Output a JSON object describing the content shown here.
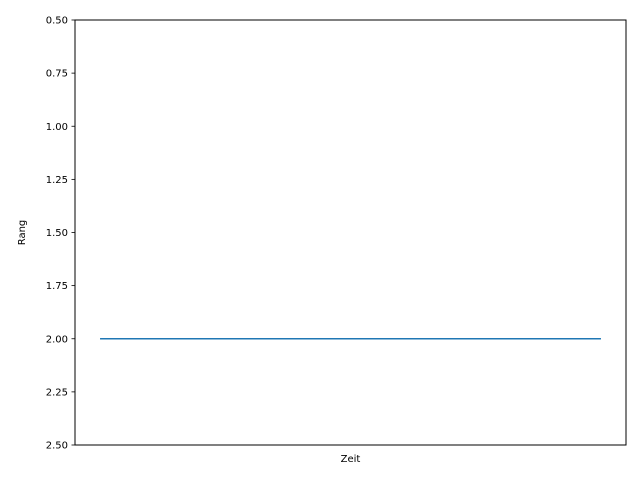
{
  "chart_data": {
    "type": "line",
    "title": "",
    "xlabel": "Zeit",
    "ylabel": "Rang",
    "x_ticks_visible": false,
    "y_inverted": true,
    "ylim": [
      0.5,
      2.5
    ],
    "y_ticks": [
      "0.50",
      "0.75",
      "1.00",
      "1.25",
      "1.50",
      "1.75",
      "2.00",
      "2.25",
      "2.50"
    ],
    "grid": false,
    "legend": "none",
    "series": [
      {
        "color": "#1f77b4",
        "x": [
          0,
          1
        ],
        "y": [
          2,
          2
        ]
      }
    ]
  }
}
